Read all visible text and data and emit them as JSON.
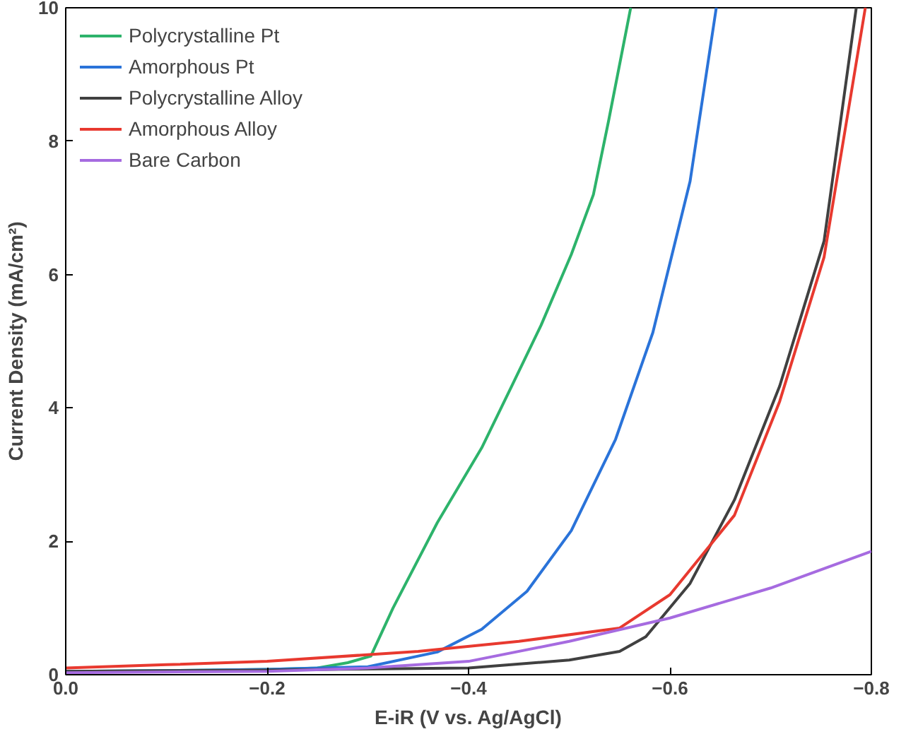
{
  "chart_data": {
    "type": "line",
    "xlabel": "E-iR (V vs. Ag/AgCl)",
    "ylabel": "Current Density (mA/cm²)",
    "xlim": [
      0,
      -0.8
    ],
    "xticks": [
      {
        "value": 0,
        "label": "0.0"
      },
      {
        "value": -0.2,
        "label": "−0.2"
      },
      {
        "value": -0.4,
        "label": "−0.4"
      },
      {
        "value": -0.6,
        "label": "−0.6"
      },
      {
        "value": -0.8,
        "label": "−0.8"
      }
    ],
    "ylim": [
      0,
      10
    ],
    "yticks": [
      0,
      2,
      4,
      6,
      8,
      10
    ],
    "grid": false,
    "legend": "top left",
    "line_style": "solid",
    "marker": "none",
    "series": [
      {
        "name": "Polycrystalline Pt",
        "color": "#2db36b",
        "x": [
          0,
          -0.1,
          -0.2,
          -0.25,
          -0.28,
          -0.303,
          -0.325,
          -0.369,
          -0.413,
          -0.443,
          -0.472,
          -0.502,
          -0.524,
          -0.539,
          -0.561
        ],
        "values": [
          0.05,
          0.06,
          0.08,
          0.1,
          0.18,
          0.28,
          1.0,
          2.28,
          3.4,
          4.33,
          5.24,
          6.3,
          7.2,
          8.3,
          10
        ]
      },
      {
        "name": "Amorphous Pt",
        "color": "#2a73d9",
        "x": [
          0,
          -0.1,
          -0.2,
          -0.3,
          -0.369,
          -0.413,
          -0.458,
          -0.502,
          -0.546,
          -0.583,
          -0.62,
          -0.646
        ],
        "values": [
          0.05,
          0.06,
          0.08,
          0.12,
          0.34,
          0.68,
          1.25,
          2.16,
          3.53,
          5.13,
          7.4,
          10
        ]
      },
      {
        "name": "Polycrystalline Alloy",
        "color": "#404040",
        "x": [
          0,
          -0.2,
          -0.4,
          -0.5,
          -0.55,
          -0.576,
          -0.62,
          -0.664,
          -0.709,
          -0.753,
          -0.785
        ],
        "values": [
          0.05,
          0.07,
          0.1,
          0.22,
          0.35,
          0.57,
          1.37,
          2.62,
          4.33,
          6.5,
          10
        ]
      },
      {
        "name": "Amorphous Alloy",
        "color": "#e8392f",
        "x": [
          0,
          -0.1,
          -0.2,
          -0.35,
          -0.45,
          -0.55,
          -0.6,
          -0.664,
          -0.709,
          -0.753,
          -0.794
        ],
        "values": [
          0.1,
          0.15,
          0.2,
          0.35,
          0.5,
          0.7,
          1.2,
          2.39,
          4.1,
          6.26,
          10
        ]
      },
      {
        "name": "Bare Carbon",
        "color": "#a66be0",
        "x": [
          0,
          -0.2,
          -0.3,
          -0.4,
          -0.5,
          -0.6,
          -0.7,
          -0.8
        ],
        "values": [
          0.03,
          0.05,
          0.1,
          0.2,
          0.5,
          0.85,
          1.3,
          1.85
        ]
      }
    ]
  }
}
